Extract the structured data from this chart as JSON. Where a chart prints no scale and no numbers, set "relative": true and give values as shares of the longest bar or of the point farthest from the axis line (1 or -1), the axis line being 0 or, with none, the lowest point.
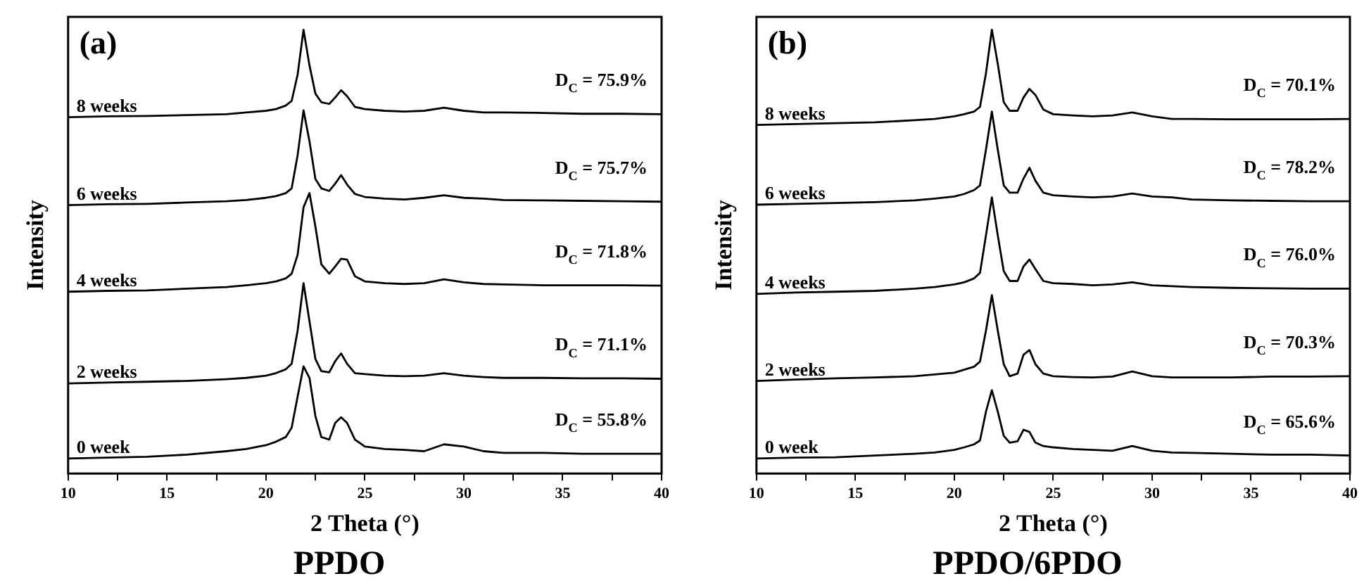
{
  "chart_data": [
    {
      "type": "line",
      "title": "PPDO",
      "xlabel": "2 Theta (°)",
      "ylabel": "Intensity",
      "relative": true,
      "legend": false,
      "grid": false,
      "marker": "none",
      "line_style": "solid",
      "xlim": [
        10,
        40
      ],
      "xticks": [
        10,
        {
          "value": 12.5,
          "label": null
        },
        15,
        {
          "value": 17.5,
          "label": null
        },
        20,
        {
          "value": 22.5,
          "label": null
        },
        25,
        {
          "value": 27.5,
          "label": null
        },
        30,
        {
          "value": 32.5,
          "label": null
        },
        35,
        {
          "value": 37.5,
          "label": null
        },
        40
      ],
      "x": [
        10,
        12,
        14,
        16,
        18,
        19,
        20,
        20.5,
        21,
        21.3,
        21.6,
        21.9,
        22.2,
        22.5,
        22.8,
        23.2,
        23.5,
        23.8,
        24.1,
        24.5,
        25,
        26,
        27,
        28,
        29,
        30,
        31,
        32,
        34,
        36,
        38,
        40
      ],
      "series": [
        {
          "name": "8 weeks",
          "color": "#000000",
          "values": [
            0.796,
            0.798,
            0.799,
            0.801,
            0.803,
            0.807,
            0.811,
            0.815,
            0.823,
            0.834,
            0.895,
            1.0,
            0.917,
            0.851,
            0.831,
            0.827,
            0.842,
            0.859,
            0.845,
            0.82,
            0.815,
            0.811,
            0.809,
            0.811,
            0.818,
            0.811,
            0.807,
            0.807,
            0.806,
            0.804,
            0.804,
            0.803
          ]
        },
        {
          "name": "6 weeks",
          "color": "#000000",
          "values": [
            0.591,
            0.593,
            0.594,
            0.597,
            0.6,
            0.603,
            0.608,
            0.612,
            0.619,
            0.63,
            0.707,
            0.812,
            0.74,
            0.652,
            0.63,
            0.624,
            0.641,
            0.661,
            0.639,
            0.617,
            0.61,
            0.606,
            0.604,
            0.608,
            0.614,
            0.608,
            0.606,
            0.603,
            0.602,
            0.601,
            0.6,
            0.599
          ]
        },
        {
          "name": "4 weeks",
          "color": "#000000",
          "values": [
            0.389,
            0.391,
            0.392,
            0.396,
            0.4,
            0.404,
            0.409,
            0.413,
            0.42,
            0.431,
            0.475,
            0.586,
            0.619,
            0.541,
            0.453,
            0.431,
            0.448,
            0.466,
            0.464,
            0.425,
            0.413,
            0.409,
            0.407,
            0.409,
            0.418,
            0.411,
            0.407,
            0.406,
            0.404,
            0.404,
            0.404,
            0.403
          ]
        },
        {
          "name": "2 weeks",
          "color": "#000000",
          "values": [
            0.175,
            0.177,
            0.179,
            0.181,
            0.185,
            0.188,
            0.193,
            0.199,
            0.208,
            0.221,
            0.298,
            0.409,
            0.32,
            0.232,
            0.204,
            0.201,
            0.227,
            0.245,
            0.221,
            0.199,
            0.197,
            0.193,
            0.192,
            0.193,
            0.199,
            0.193,
            0.19,
            0.188,
            0.188,
            0.187,
            0.187,
            0.186
          ]
        },
        {
          "name": "0 week",
          "color": "#000000",
          "values": [
            0,
            0.002,
            0.004,
            0.009,
            0.017,
            0.022,
            0.031,
            0.039,
            0.05,
            0.072,
            0.144,
            0.215,
            0.188,
            0.099,
            0.05,
            0.044,
            0.083,
            0.096,
            0.083,
            0.044,
            0.028,
            0.022,
            0.02,
            0.017,
            0.033,
            0.028,
            0.017,
            0.013,
            0.013,
            0.011,
            0.011,
            0.011
          ]
        }
      ],
      "annotations": [
        "(a)",
        "D$_{C}$ = 75.9%",
        "D$_{C}$ = 75.7%",
        "D$_{C}$ = 71.8%",
        "D$_{C}$ = 71.1%",
        "D$_{C}$ = 55.8%"
      ]
    },
    {
      "type": "line",
      "title": "PPDO/6PDO",
      "xlabel": "2 Theta (°)",
      "ylabel": "Intensity",
      "relative": true,
      "legend": false,
      "grid": false,
      "marker": "none",
      "line_style": "solid",
      "xlim": [
        10,
        40
      ],
      "xticks": [
        10,
        {
          "value": 12.5,
          "label": null
        },
        15,
        {
          "value": 17.5,
          "label": null
        },
        20,
        {
          "value": 22.5,
          "label": null
        },
        25,
        {
          "value": 27.5,
          "label": null
        },
        30,
        {
          "value": 32.5,
          "label": null
        },
        35,
        {
          "value": 37.5,
          "label": null
        },
        40
      ],
      "x": [
        10,
        12,
        14,
        16,
        18,
        19,
        20,
        20.5,
        21,
        21.3,
        21.6,
        21.9,
        22.2,
        22.5,
        22.8,
        23.2,
        23.5,
        23.8,
        24.1,
        24.5,
        25,
        26,
        27,
        28,
        29,
        30,
        31,
        32,
        34,
        36,
        38,
        40
      ],
      "series": [
        {
          "name": "8 weeks",
          "color": "#000000",
          "values": [
            0.778,
            0.78,
            0.782,
            0.784,
            0.789,
            0.792,
            0.798,
            0.803,
            0.809,
            0.82,
            0.898,
            1.0,
            0.92,
            0.831,
            0.811,
            0.811,
            0.842,
            0.862,
            0.848,
            0.814,
            0.803,
            0.8,
            0.798,
            0.8,
            0.807,
            0.798,
            0.792,
            0.792,
            0.791,
            0.791,
            0.791,
            0.792
          ]
        },
        {
          "name": "6 weeks",
          "color": "#000000",
          "values": [
            0.592,
            0.594,
            0.596,
            0.598,
            0.602,
            0.606,
            0.611,
            0.617,
            0.626,
            0.637,
            0.72,
            0.809,
            0.72,
            0.637,
            0.62,
            0.62,
            0.653,
            0.678,
            0.648,
            0.62,
            0.614,
            0.611,
            0.609,
            0.611,
            0.618,
            0.611,
            0.609,
            0.604,
            0.602,
            0.601,
            0.6,
            0.6
          ]
        },
        {
          "name": "4 weeks",
          "color": "#000000",
          "values": [
            0.384,
            0.387,
            0.389,
            0.391,
            0.396,
            0.4,
            0.406,
            0.411,
            0.42,
            0.433,
            0.52,
            0.609,
            0.52,
            0.437,
            0.414,
            0.414,
            0.448,
            0.464,
            0.442,
            0.414,
            0.409,
            0.407,
            0.404,
            0.406,
            0.411,
            0.404,
            0.402,
            0.4,
            0.398,
            0.397,
            0.396,
            0.396
          ]
        },
        {
          "name": "2 weeks",
          "color": "#000000",
          "values": [
            0.181,
            0.184,
            0.187,
            0.189,
            0.192,
            0.196,
            0.2,
            0.207,
            0.214,
            0.226,
            0.298,
            0.381,
            0.298,
            0.22,
            0.192,
            0.198,
            0.242,
            0.253,
            0.22,
            0.198,
            0.192,
            0.19,
            0.189,
            0.191,
            0.203,
            0.192,
            0.189,
            0.189,
            0.189,
            0.191,
            0.191,
            0.192
          ]
        },
        {
          "name": "0 week",
          "color": "#000000",
          "values": [
            0,
            0.002,
            0.003,
            0.007,
            0.011,
            0.014,
            0.02,
            0.026,
            0.033,
            0.042,
            0.109,
            0.159,
            0.109,
            0.053,
            0.037,
            0.04,
            0.067,
            0.062,
            0.037,
            0.029,
            0.026,
            0.022,
            0.02,
            0.018,
            0.029,
            0.018,
            0.014,
            0.013,
            0.011,
            0.009,
            0.009,
            0.007
          ]
        }
      ],
      "annotations": [
        "(b)",
        "D$_{C}$ = 70.1%",
        "D$_{C}$ = 78.2%",
        "D$_{C}$ = 76.0%",
        "D$_{C}$ = 70.3%",
        "D$_{C}$ = 65.6%"
      ]
    }
  ]
}
